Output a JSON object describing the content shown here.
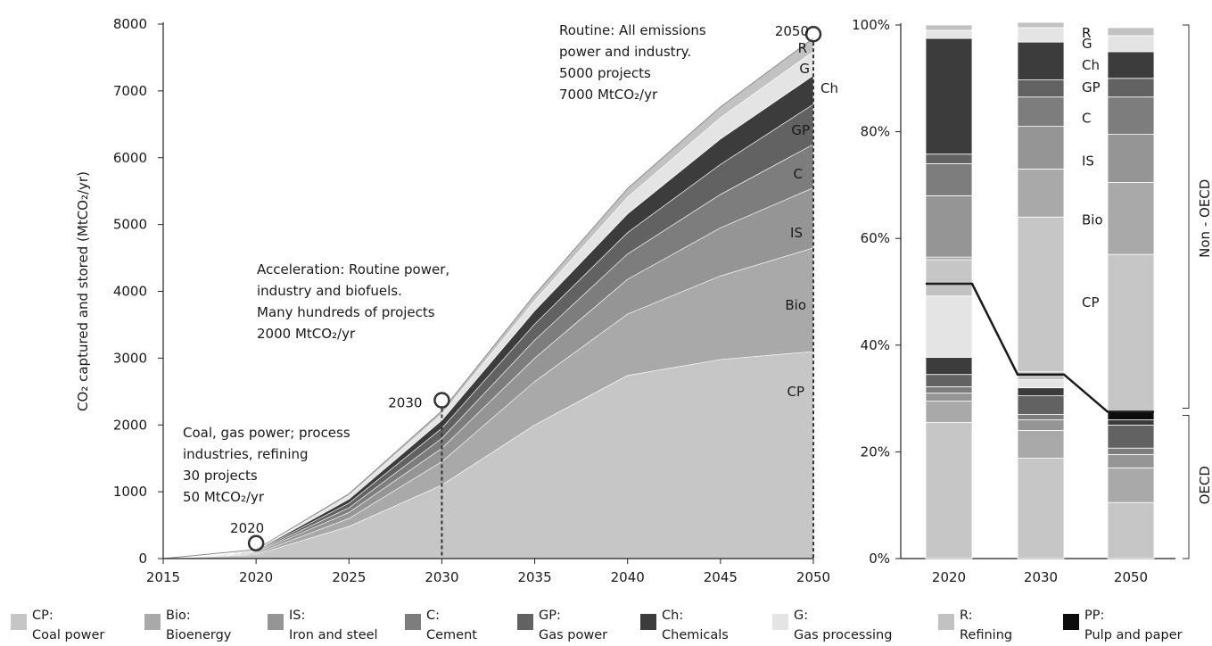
{
  "colors": {
    "CP": "#c6c6c6",
    "Bio": "#a9a9a9",
    "IS": "#959595",
    "C": "#7d7d7d",
    "GP": "#626262",
    "Ch": "#3c3c3c",
    "G": "#e4e4e4",
    "R": "#c2c2c2",
    "PP": "#0c0c0c"
  },
  "chart_data": [
    {
      "type": "area",
      "ylabel": "CO₂ captured and stored (MtCO₂/yr)",
      "xlim": [
        2015,
        2050
      ],
      "ylim": [
        0,
        8000
      ],
      "x_ticks": [
        "2015",
        "2020",
        "2025",
        "2030",
        "2035",
        "2040",
        "2045",
        "2050"
      ],
      "y_ticks": [
        "0",
        "1000",
        "2000",
        "3000",
        "4000",
        "5000",
        "6000",
        "7000",
        "8000"
      ],
      "x": [
        2015,
        2020,
        2025,
        2030,
        2035,
        2040,
        2045,
        2050
      ],
      "stack_order": [
        "CP",
        "Bio",
        "IS",
        "C",
        "GP",
        "Ch",
        "G",
        "R"
      ],
      "series": [
        {
          "name": "CP",
          "label": "CP",
          "values": [
            0,
            60,
            480,
            1100,
            2000,
            2740,
            2980,
            3100
          ]
        },
        {
          "name": "Bio",
          "label": "Bio",
          "values": [
            0,
            15,
            120,
            350,
            650,
            920,
            1250,
            1550
          ]
        },
        {
          "name": "IS",
          "label": "IS",
          "values": [
            0,
            15,
            90,
            200,
            350,
            520,
            720,
            900
          ]
        },
        {
          "name": "C",
          "label": "C",
          "values": [
            0,
            10,
            70,
            150,
            270,
            380,
            500,
            650
          ]
        },
        {
          "name": "GP",
          "label": "GP",
          "values": [
            0,
            10,
            70,
            150,
            240,
            320,
            450,
            600
          ]
        },
        {
          "name": "Ch",
          "label": "Ch",
          "values": [
            0,
            10,
            60,
            120,
            200,
            280,
            380,
            430
          ]
        },
        {
          "name": "G",
          "label": "G",
          "values": [
            0,
            8,
            50,
            90,
            150,
            250,
            320,
            360
          ]
        },
        {
          "name": "R",
          "label": "R",
          "values": [
            0,
            7,
            30,
            50,
            90,
            130,
            160,
            200
          ]
        }
      ],
      "milestones": [
        {
          "year": "2020",
          "value": 230,
          "label": "2020",
          "text": [
            "Coal, gas power; process",
            "industries, refining",
            "30 projects",
            "50 MtCO₂/yr"
          ]
        },
        {
          "year": "2030",
          "value": 2370,
          "label": "2030",
          "text": [
            "Acceleration: Routine power,",
            "industry and biofuels.",
            "Many hundreds of projects",
            "2000 MtCO₂/yr"
          ]
        },
        {
          "year": "2050",
          "value": 7850,
          "label": "2050",
          "text": [
            "Routine: All emissions",
            "power and industry.",
            "5000 projects",
            "7000 MtCO₂/yr"
          ]
        }
      ]
    },
    {
      "type": "bar",
      "stacked": true,
      "percent": true,
      "categories": [
        "2020",
        "2030",
        "2050"
      ],
      "ylim": [
        0,
        100
      ],
      "y_ticks": [
        "0%",
        "20%",
        "40%",
        "60%",
        "80%",
        "100%"
      ],
      "bars": [
        {
          "category": "2020",
          "oecd": [
            {
              "name": "CP",
              "value": 25.5
            },
            {
              "name": "Bio",
              "value": 4
            },
            {
              "name": "IS",
              "value": 1.5
            },
            {
              "name": "C",
              "value": 1.2
            },
            {
              "name": "GP",
              "value": 2.3
            },
            {
              "name": "Ch",
              "value": 3.2
            },
            {
              "name": "G",
              "value": 11.5
            },
            {
              "name": "R",
              "value": 2.3
            }
          ],
          "non_oecd": [
            {
              "name": "CP",
              "value": 4.5
            },
            {
              "name": "Bio",
              "value": 0.5
            },
            {
              "name": "IS",
              "value": 11.5
            },
            {
              "name": "C",
              "value": 6
            },
            {
              "name": "GP",
              "value": 1.8
            },
            {
              "name": "Ch",
              "value": 21.7
            },
            {
              "name": "G",
              "value": 1.5
            },
            {
              "name": "R",
              "value": 1
            }
          ]
        },
        {
          "category": "2030",
          "oecd": [
            {
              "name": "CP",
              "value": 18.8
            },
            {
              "name": "Bio",
              "value": 5.2
            },
            {
              "name": "IS",
              "value": 2
            },
            {
              "name": "C",
              "value": 1
            },
            {
              "name": "GP",
              "value": 3.5
            },
            {
              "name": "Ch",
              "value": 1.5
            },
            {
              "name": "G",
              "value": 1.5
            },
            {
              "name": "R",
              "value": 1.5
            }
          ],
          "non_oecd": [
            {
              "name": "CP",
              "value": 29
            },
            {
              "name": "Bio",
              "value": 9
            },
            {
              "name": "IS",
              "value": 8
            },
            {
              "name": "C",
              "value": 5.5
            },
            {
              "name": "GP",
              "value": 3.2
            },
            {
              "name": "Ch",
              "value": 7.1
            },
            {
              "name": "G",
              "value": 2.7
            },
            {
              "name": "R",
              "value": 1
            }
          ]
        },
        {
          "category": "2050",
          "oecd": [
            {
              "name": "CP",
              "value": 10.5
            },
            {
              "name": "Bio",
              "value": 6.5
            },
            {
              "name": "IS",
              "value": 2.5
            },
            {
              "name": "C",
              "value": 1.2
            },
            {
              "name": "GP",
              "value": 4.3
            },
            {
              "name": "Ch",
              "value": 1
            },
            {
              "name": "PP",
              "value": 1.5
            }
          ],
          "non_oecd": [
            {
              "name": "CP",
              "value": 29.5
            },
            {
              "name": "Bio",
              "value": 13.5
            },
            {
              "name": "IS",
              "value": 9
            },
            {
              "name": "C",
              "value": 7
            },
            {
              "name": "GP",
              "value": 3.5
            },
            {
              "name": "Ch",
              "value": 5
            },
            {
              "name": "G",
              "value": 3
            },
            {
              "name": "R",
              "value": 1.5
            }
          ]
        }
      ],
      "oecd_share": [
        51.5,
        34.5,
        27.5
      ],
      "group_labels": {
        "non_oecd": "Non - OECD",
        "oecd": "OECD"
      },
      "segment_labels": [
        {
          "text": "R",
          "value": 98.5
        },
        {
          "text": "G",
          "value": 96.5
        },
        {
          "text": "Ch",
          "value": 92.5
        },
        {
          "text": "GP",
          "value": 88.3
        },
        {
          "text": "C",
          "value": 82.5
        },
        {
          "text": "IS",
          "value": 74.5
        },
        {
          "text": "Bio",
          "value": 63.5
        },
        {
          "text": "CP",
          "value": 48
        }
      ]
    }
  ],
  "legend": [
    {
      "code": "CP:",
      "name": "Coal power",
      "key": "CP"
    },
    {
      "code": "Bio:",
      "name": "Bioenergy",
      "key": "Bio"
    },
    {
      "code": "IS:",
      "name": "Iron and steel",
      "key": "IS"
    },
    {
      "code": "C:",
      "name": "Cement",
      "key": "C"
    },
    {
      "code": "GP:",
      "name": "Gas power",
      "key": "GP"
    },
    {
      "code": "Ch:",
      "name": "Chemicals",
      "key": "Ch"
    },
    {
      "code": "G:",
      "name": "Gas processing",
      "key": "G"
    },
    {
      "code": "R:",
      "name": "Refining",
      "key": "R"
    },
    {
      "code": "PP:",
      "name": "Pulp and paper",
      "key": "PP"
    }
  ]
}
